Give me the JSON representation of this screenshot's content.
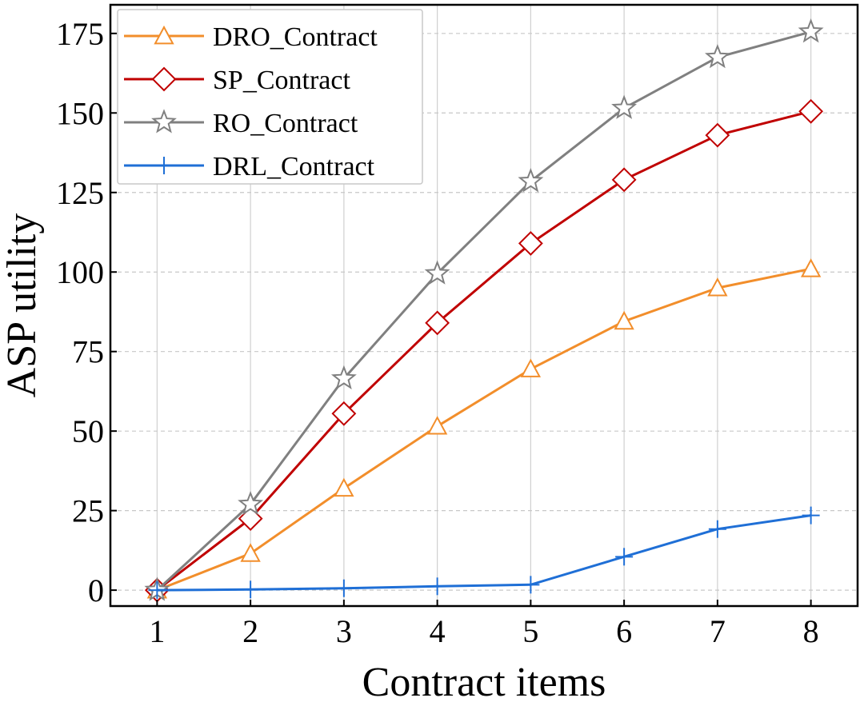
{
  "chart_data": {
    "type": "line",
    "xlabel": "Contract items",
    "ylabel": "ASP utility",
    "x": [
      1,
      2,
      3,
      4,
      5,
      6,
      7,
      8
    ],
    "xticks": [
      "1",
      "2",
      "3",
      "4",
      "5",
      "6",
      "7",
      "8"
    ],
    "yticks": [
      "0",
      "25",
      "50",
      "75",
      "100",
      "125",
      "150",
      "175"
    ],
    "xlim": [
      0.5,
      8.5
    ],
    "ylim": [
      -5,
      184
    ],
    "grid": true,
    "legend_position": "top-left",
    "series": [
      {
        "name": "DRO_Contract",
        "color": "#f28e2b",
        "marker": "triangle",
        "values": [
          0,
          11.5,
          32,
          51.5,
          69.5,
          84.5,
          95,
          101
        ]
      },
      {
        "name": "SP_Contract",
        "color": "#c00000",
        "marker": "diamond",
        "values": [
          0,
          22.5,
          55.5,
          84,
          109,
          129,
          143,
          150.5
        ]
      },
      {
        "name": "RO_Contract",
        "color": "#808080",
        "marker": "star",
        "values": [
          0,
          27,
          66.5,
          99.5,
          128.5,
          151.5,
          167.5,
          175.5
        ]
      },
      {
        "name": "DRL_Contract",
        "color": "#1f6fd6",
        "marker": "plus",
        "values": [
          0,
          0.2,
          0.6,
          1.2,
          1.7,
          10.5,
          19.2,
          23.5
        ]
      }
    ]
  }
}
